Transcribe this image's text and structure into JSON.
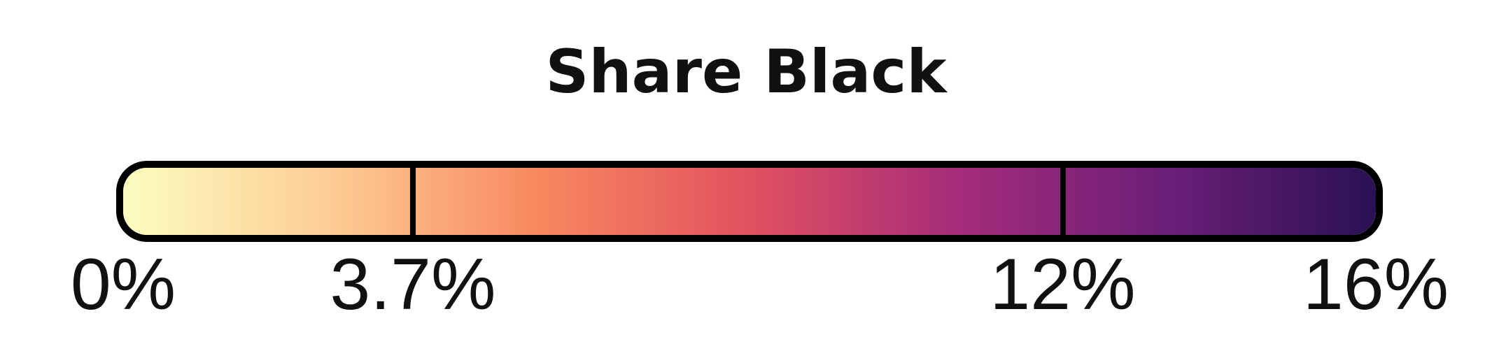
{
  "chart_data": {
    "type": "heatmap",
    "title": "Share Black",
    "scale": {
      "min": 0,
      "max": 16,
      "unit": "%",
      "breaks": [
        0,
        3.7,
        12,
        16
      ],
      "tick_labels": [
        "0%",
        "3.7%",
        "12%",
        "16%"
      ],
      "colormap": "magma (reversed)",
      "colors": [
        "#fcfdbf",
        "#fdcc94",
        "#f8875f",
        "#e1515f",
        "#a52c7a",
        "#6b1f78",
        "#2a1155"
      ]
    }
  }
}
